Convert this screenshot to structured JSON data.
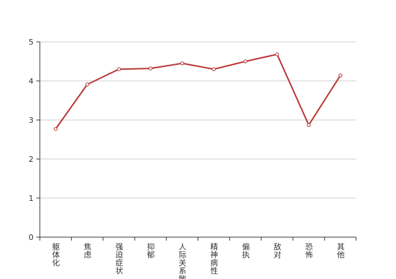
{
  "chart_data": {
    "type": "line",
    "categories": [
      "躯体化",
      "焦虑",
      "强迫症状",
      "抑郁",
      "人际关系敏感",
      "精神病性",
      "偏执",
      "敌对",
      "恐怖",
      "其他"
    ],
    "series": [
      {
        "color": "#b83333",
        "values": [
          2.77,
          3.91,
          4.3,
          4.32,
          4.45,
          4.3,
          4.5,
          4.68,
          2.87,
          4.14
        ]
      }
    ],
    "ylim": [
      0,
      5
    ],
    "yticks": [
      0,
      1,
      2,
      3,
      4,
      5
    ],
    "grid": true
  }
}
